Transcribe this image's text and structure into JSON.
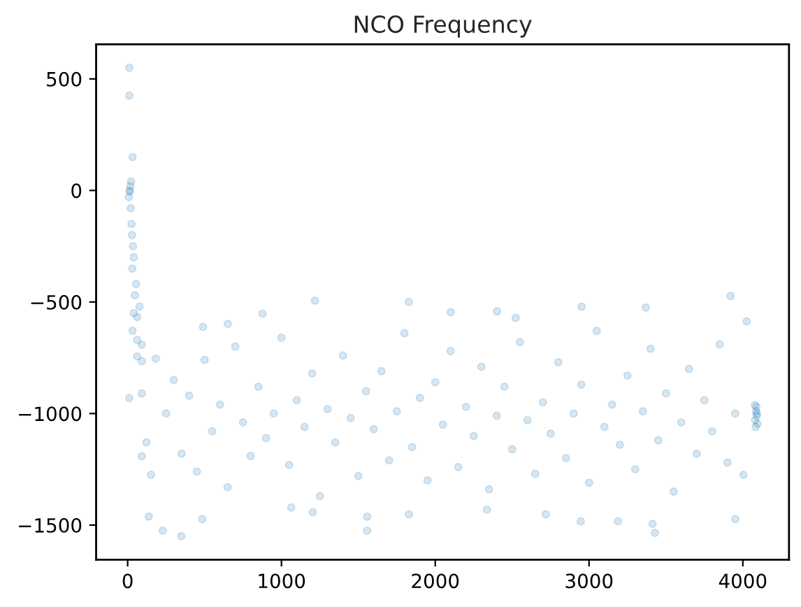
{
  "chart_data": {
    "type": "scatter",
    "title": "NCO Frequency",
    "series": [
      {
        "color": "#1f77b4",
        "x": [
          11,
          11,
          32,
          17,
          22,
          15,
          12,
          8,
          20,
          25,
          28,
          35,
          40,
          30,
          55,
          47,
          77,
          40,
          62,
          32,
          62,
          92,
          62,
          92,
          183,
          11,
          92,
          122,
          92,
          152,
          137,
          228,
          349,
          485,
          877,
          490,
          651,
          1218,
          1829,
          1557,
          1557,
          1829,
          2336,
          2101,
          2402,
          1064,
          1204,
          2523,
          3920,
          2952,
          3369,
          3428,
          3413,
          3951,
          2946,
          3188,
          2719,
          4025,
          4004,
          4078,
          4085,
          4090,
          4095,
          4080,
          4088,
          4092,
          4083,
          250,
          300,
          350,
          400,
          450,
          500,
          550,
          600,
          650,
          700,
          750,
          800,
          850,
          900,
          950,
          1000,
          1050,
          1100,
          1150,
          1200,
          1250,
          1300,
          1350,
          1400,
          1450,
          1500,
          1550,
          1600,
          1650,
          1700,
          1750,
          1800,
          1850,
          1900,
          1950,
          2000,
          2050,
          2100,
          2150,
          2200,
          2250,
          2300,
          2350,
          2400,
          2450,
          2500,
          2550,
          2600,
          2650,
          2700,
          2750,
          2800,
          2850,
          2900,
          2950,
          3000,
          3050,
          3100,
          3150,
          3200,
          3250,
          3300,
          3350,
          3400,
          3450,
          3500,
          3550,
          3600,
          3650,
          3700,
          3750,
          3800,
          3850,
          3900,
          3950
        ],
        "values": [
          550,
          425,
          150,
          20,
          40,
          -5,
          0,
          -30,
          -80,
          -150,
          -200,
          -250,
          -300,
          -350,
          -420,
          -470,
          -520,
          -550,
          -567,
          -629,
          -671,
          -692,
          -744,
          -765,
          -754,
          -931,
          -910,
          -1129,
          -1192,
          -1275,
          -1462,
          -1525,
          -1550,
          -1473,
          -552,
          -612,
          -598,
          -494,
          -500,
          -1525,
          -1462,
          -1452,
          -1431,
          -546,
          -542,
          -1421,
          -1442,
          -571,
          -473,
          -521,
          -525,
          -1535,
          -1494,
          -1473,
          -1483,
          -1483,
          -1452,
          -587,
          -1275,
          -962,
          -990,
          -1010,
          -1046,
          -1030,
          -970,
          -1000,
          -1060,
          -1000,
          -850,
          -1180,
          -920,
          -1260,
          -760,
          -1080,
          -960,
          -1330,
          -700,
          -1040,
          -1190,
          -880,
          -1110,
          -1000,
          -660,
          -1230,
          -940,
          -1060,
          -820,
          -1370,
          -980,
          -1130,
          -740,
          -1020,
          -1280,
          -900,
          -1070,
          -810,
          -1210,
          -990,
          -640,
          -1150,
          -930,
          -1300,
          -860,
          -1050,
          -720,
          -1240,
          -970,
          -1100,
          -790,
          -1340,
          -1010,
          -880,
          -1160,
          -680,
          -1030,
          -1270,
          -950,
          -1090,
          -770,
          -1200,
          -1000,
          -870,
          -1310,
          -630,
          -1060,
          -960,
          -1140,
          -830,
          -1250,
          -990,
          -710,
          -1120,
          -910,
          -1350,
          -1040,
          -800,
          -1180,
          -940,
          -1080,
          -690,
          -1220,
          -1000
        ]
      }
    ],
    "marker": "circle",
    "xlim": [
      -205,
      4300
    ],
    "ylim": [
      -1655,
      655
    ],
    "xticks": [
      0,
      1000,
      2000,
      3000,
      4000
    ],
    "yticks": [
      {
        "value": -1500,
        "label": "−1500"
      },
      {
        "value": -1000,
        "label": "−1000"
      },
      {
        "value": -500,
        "label": "−500"
      },
      0,
      500
    ]
  }
}
